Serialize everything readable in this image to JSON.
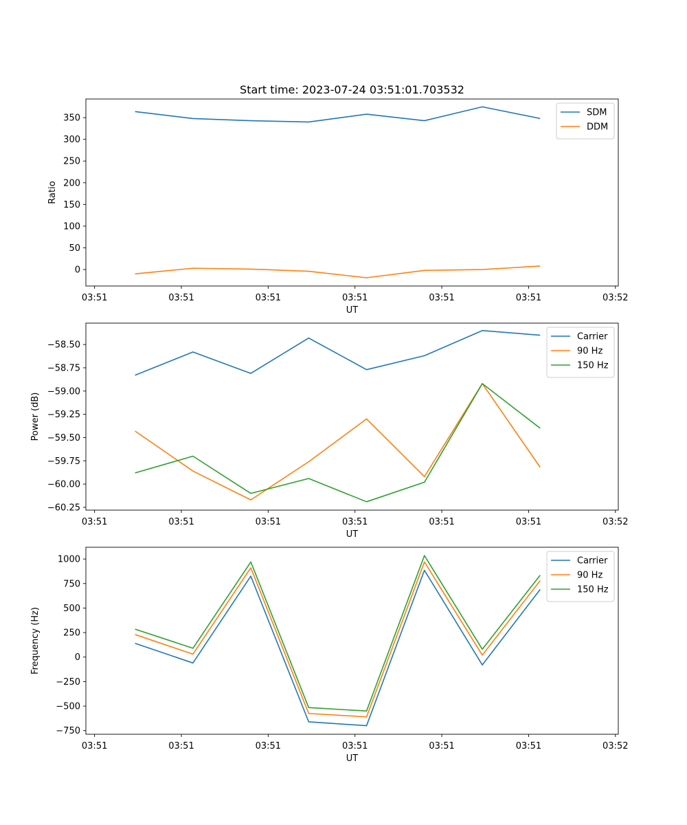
{
  "figure": {
    "title": "Start time: 2023-07-24 03:51:01.703532"
  },
  "chart_data": [
    {
      "type": "line",
      "xlabel": "UT",
      "ylabel": "Ratio",
      "x": [
        1,
        2,
        3,
        4,
        5,
        6,
        7,
        8
      ],
      "xlim": [
        0.15,
        9.35
      ],
      "x_ticks": [
        0.3,
        1.8,
        3.3,
        4.8,
        6.3,
        7.8,
        9.3
      ],
      "x_tick_labels": [
        "03:51",
        "03:51",
        "03:51",
        "03:51",
        "03:51",
        "03:51",
        "03:52"
      ],
      "ylim": [
        -38,
        393
      ],
      "y_ticks": [
        0,
        50,
        100,
        150,
        200,
        250,
        300,
        350
      ],
      "y_tick_labels": [
        "0",
        "50",
        "100",
        "150",
        "200",
        "250",
        "300",
        "350"
      ],
      "legend_position": "top-right",
      "series": [
        {
          "name": "SDM",
          "color": "#1f77b4",
          "values": [
            364,
            348,
            343,
            340,
            358,
            343,
            375,
            348
          ]
        },
        {
          "name": "DDM",
          "color": "#ff7f0e",
          "values": [
            -10,
            3,
            1,
            -4,
            -19,
            -2,
            0,
            8
          ]
        }
      ]
    },
    {
      "type": "line",
      "xlabel": "UT",
      "ylabel": "Power (dB)",
      "x": [
        1,
        2,
        3,
        4,
        5,
        6,
        7,
        8
      ],
      "xlim": [
        0.15,
        9.35
      ],
      "x_ticks": [
        0.3,
        1.8,
        3.3,
        4.8,
        6.3,
        7.8,
        9.3
      ],
      "x_tick_labels": [
        "03:51",
        "03:51",
        "03:51",
        "03:51",
        "03:51",
        "03:51",
        "03:52"
      ],
      "ylim": [
        -60.28,
        -58.27
      ],
      "y_ticks": [
        -60.25,
        -60.0,
        -59.75,
        -59.5,
        -59.25,
        -59.0,
        -58.75,
        -58.5
      ],
      "y_tick_labels": [
        "−60.25",
        "−60.00",
        "−59.75",
        "−59.50",
        "−59.25",
        "−59.00",
        "−58.75",
        "−58.50"
      ],
      "legend_position": "top-right",
      "series": [
        {
          "name": "Carrier",
          "color": "#1f77b4",
          "values": [
            -58.83,
            -58.58,
            -58.81,
            -58.43,
            -58.77,
            -58.62,
            -58.35,
            -58.4
          ]
        },
        {
          "name": "90 Hz",
          "color": "#ff7f0e",
          "values": [
            -59.43,
            -59.86,
            -60.17,
            -59.76,
            -59.3,
            -59.92,
            -58.92,
            -59.82
          ]
        },
        {
          "name": "150 Hz",
          "color": "#2ca02c",
          "values": [
            -59.88,
            -59.7,
            -60.1,
            -59.94,
            -60.19,
            -59.98,
            -58.92,
            -59.4
          ]
        }
      ]
    },
    {
      "type": "line",
      "xlabel": "UT",
      "ylabel": "Frequency (Hz)",
      "x": [
        1,
        2,
        3,
        4,
        5,
        6,
        7,
        8
      ],
      "xlim": [
        0.15,
        9.35
      ],
      "x_ticks": [
        0.3,
        1.8,
        3.3,
        4.8,
        6.3,
        7.8,
        9.3
      ],
      "x_tick_labels": [
        "03:51",
        "03:51",
        "03:51",
        "03:51",
        "03:51",
        "03:51",
        "03:52"
      ],
      "ylim": [
        -787,
        1120
      ],
      "y_ticks": [
        -750,
        -500,
        -250,
        0,
        250,
        500,
        750,
        1000
      ],
      "y_tick_labels": [
        "−750",
        "−500",
        "−250",
        "0",
        "250",
        "500",
        "750",
        "1000"
      ],
      "legend_position": "top-right",
      "series": [
        {
          "name": "Carrier",
          "color": "#1f77b4",
          "values": [
            140,
            -60,
            825,
            -660,
            -700,
            885,
            -80,
            690
          ]
        },
        {
          "name": "90 Hz",
          "color": "#ff7f0e",
          "values": [
            230,
            30,
            910,
            -575,
            -610,
            970,
            20,
            780
          ]
        },
        {
          "name": "150 Hz",
          "color": "#2ca02c",
          "values": [
            285,
            90,
            970,
            -515,
            -550,
            1035,
            80,
            835
          ]
        }
      ]
    }
  ]
}
